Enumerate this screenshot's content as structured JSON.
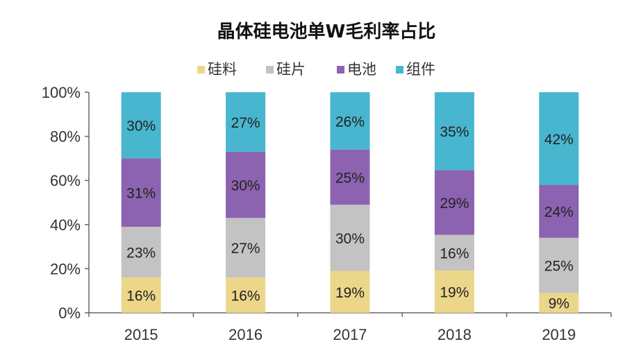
{
  "chart_data": {
    "type": "bar",
    "stacked": true,
    "title": "晶体硅电池单W毛利率占比",
    "categories": [
      "2015",
      "2016",
      "2017",
      "2018",
      "2019"
    ],
    "series": [
      {
        "name": "硅料",
        "color": "#ecd68a",
        "values": [
          16,
          16,
          19,
          19,
          9
        ],
        "labels": [
          "16%",
          "16%",
          "19%",
          "19%",
          "9%"
        ]
      },
      {
        "name": "硅片",
        "color": "#c3c3c3",
        "values": [
          23,
          27,
          30,
          16,
          25
        ],
        "labels": [
          "23%",
          "27%",
          "30%",
          "16%",
          "25%"
        ]
      },
      {
        "name": "电池",
        "color": "#8c63b0",
        "values": [
          31,
          30,
          25,
          29,
          24
        ],
        "labels": [
          "31%",
          "30%",
          "25%",
          "29%",
          "24%"
        ]
      },
      {
        "name": "组件",
        "color": "#48b6cf",
        "values": [
          30,
          27,
          26,
          35,
          42
        ],
        "labels": [
          "30%",
          "27%",
          "26%",
          "35%",
          "42%"
        ]
      }
    ],
    "y_ticks": [
      "0%",
      "20%",
      "40%",
      "60%",
      "80%",
      "100%"
    ],
    "ylim": [
      0,
      100
    ],
    "xlabel": "",
    "ylabel": "",
    "legend_position": "top",
    "grid": false
  }
}
